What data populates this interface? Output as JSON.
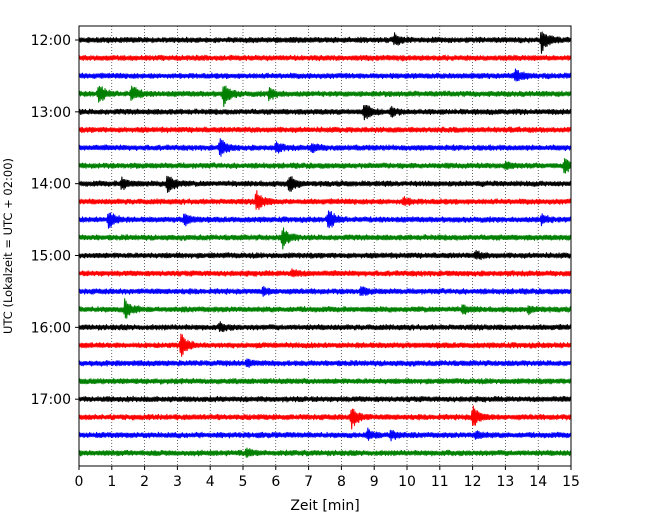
{
  "chart_data": {
    "type": "line",
    "title": "",
    "xlabel": "Zeit  [min]",
    "ylabel": "UTC (Lokalzeit = UTC + 02:00)",
    "xlim": [
      0,
      15
    ],
    "x_ticks": [
      0,
      1,
      2,
      3,
      4,
      5,
      6,
      7,
      8,
      9,
      10,
      11,
      12,
      13,
      14,
      15
    ],
    "y_tick_labels": [
      "12:00",
      "13:00",
      "14:00",
      "15:00",
      "16:00",
      "17:00"
    ],
    "x_grid": "dotted vertical at each minute",
    "colors": [
      "#000000",
      "#ff0000",
      "#0000ff",
      "#008000"
    ],
    "trace_interval_minutes": 15,
    "traces": [
      {
        "start": "12:00",
        "color": "#000000",
        "events": [
          {
            "t": 9.6,
            "amp": 0.5
          },
          {
            "t": 14.1,
            "amp": 1.0
          }
        ]
      },
      {
        "start": "12:15",
        "color": "#ff0000",
        "events": []
      },
      {
        "start": "12:30",
        "color": "#0000ff",
        "events": [
          {
            "t": 13.3,
            "amp": 0.5
          }
        ]
      },
      {
        "start": "12:45",
        "color": "#008000",
        "events": [
          {
            "t": 0.6,
            "amp": 0.8
          },
          {
            "t": 1.6,
            "amp": 0.7
          },
          {
            "t": 4.4,
            "amp": 1.0
          },
          {
            "t": 5.8,
            "amp": 0.5
          }
        ]
      },
      {
        "start": "13:00",
        "color": "#000000",
        "events": [
          {
            "t": 8.7,
            "amp": 0.8
          },
          {
            "t": 9.5,
            "amp": 0.4
          }
        ]
      },
      {
        "start": "13:15",
        "color": "#ff0000",
        "events": []
      },
      {
        "start": "13:30",
        "color": "#0000ff",
        "events": [
          {
            "t": 4.3,
            "amp": 0.8
          },
          {
            "t": 6.0,
            "amp": 0.4
          },
          {
            "t": 7.1,
            "amp": 0.4
          }
        ]
      },
      {
        "start": "13:45",
        "color": "#008000",
        "events": [
          {
            "t": 13.0,
            "amp": 0.3
          },
          {
            "t": 14.8,
            "amp": 0.6
          }
        ]
      },
      {
        "start": "14:00",
        "color": "#000000",
        "events": [
          {
            "t": 1.3,
            "amp": 0.5
          },
          {
            "t": 2.7,
            "amp": 1.0
          },
          {
            "t": 6.4,
            "amp": 0.8
          }
        ]
      },
      {
        "start": "14:15",
        "color": "#ff0000",
        "events": [
          {
            "t": 5.4,
            "amp": 0.9
          },
          {
            "t": 9.9,
            "amp": 0.3
          }
        ]
      },
      {
        "start": "14:30",
        "color": "#0000ff",
        "events": [
          {
            "t": 0.9,
            "amp": 0.8
          },
          {
            "t": 3.2,
            "amp": 0.5
          },
          {
            "t": 7.6,
            "amp": 0.9
          },
          {
            "t": 14.1,
            "amp": 0.4
          }
        ]
      },
      {
        "start": "14:45",
        "color": "#008000",
        "events": [
          {
            "t": 6.2,
            "amp": 0.9
          }
        ]
      },
      {
        "start": "15:00",
        "color": "#000000",
        "events": [
          {
            "t": 12.1,
            "amp": 0.3
          }
        ]
      },
      {
        "start": "15:15",
        "color": "#ff0000",
        "events": [
          {
            "t": 6.5,
            "amp": 0.3
          }
        ]
      },
      {
        "start": "15:30",
        "color": "#0000ff",
        "events": [
          {
            "t": 5.6,
            "amp": 0.3
          },
          {
            "t": 8.6,
            "amp": 0.3
          }
        ]
      },
      {
        "start": "15:45",
        "color": "#008000",
        "events": [
          {
            "t": 1.4,
            "amp": 0.9
          },
          {
            "t": 11.7,
            "amp": 0.3
          },
          {
            "t": 13.7,
            "amp": 0.3
          }
        ]
      },
      {
        "start": "16:00",
        "color": "#000000",
        "events": [
          {
            "t": 4.3,
            "amp": 0.3
          }
        ]
      },
      {
        "start": "16:15",
        "color": "#ff0000",
        "events": [
          {
            "t": 3.1,
            "amp": 1.0
          }
        ]
      },
      {
        "start": "16:30",
        "color": "#0000ff",
        "events": [
          {
            "t": 5.1,
            "amp": 0.3
          }
        ]
      },
      {
        "start": "16:45",
        "color": "#008000",
        "events": []
      },
      {
        "start": "17:00",
        "color": "#000000",
        "events": []
      },
      {
        "start": "17:15",
        "color": "#ff0000",
        "events": [
          {
            "t": 8.3,
            "amp": 1.0
          },
          {
            "t": 12.0,
            "amp": 1.0
          }
        ]
      },
      {
        "start": "17:30",
        "color": "#0000ff",
        "events": [
          {
            "t": 8.8,
            "amp": 0.4
          },
          {
            "t": 9.5,
            "amp": 0.4
          },
          {
            "t": 12.1,
            "amp": 0.3
          }
        ]
      },
      {
        "start": "17:45",
        "color": "#008000",
        "events": [
          {
            "t": 5.1,
            "amp": 0.3
          }
        ]
      }
    ]
  }
}
